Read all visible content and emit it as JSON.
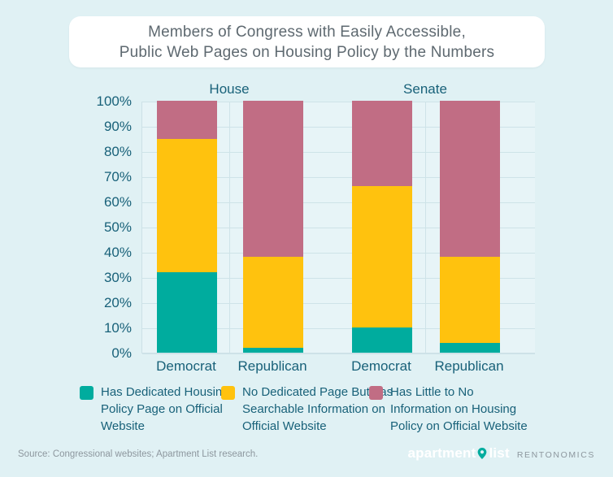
{
  "header": {
    "title_line1": "Members of Congress with Easily Accessible,",
    "title_line2": "Public Web Pages on Housing Policy by the Numbers"
  },
  "chart_data": {
    "type": "bar",
    "stacked": true,
    "units": "percent",
    "group_labels": [
      "House",
      "Senate"
    ],
    "categories": [
      "Democrat",
      "Republican",
      "Democrat",
      "Republican"
    ],
    "category_groups": [
      "House",
      "House",
      "Senate",
      "Senate"
    ],
    "series": [
      {
        "name": "Has Dedicated Housing Policy Page on Official Website",
        "color": "#00AC9E",
        "values": [
          32,
          2,
          10,
          4
        ]
      },
      {
        "name": "No Dedicated Page But has Searchable Information on Official Website",
        "color": "#FFC20E",
        "values": [
          53,
          36,
          56,
          34
        ]
      },
      {
        "name": "Has Little to No Information on Housing Policy on Official Website",
        "color": "#C16D84",
        "values": [
          15,
          62,
          34,
          62
        ]
      }
    ],
    "y_ticks": [
      "100%",
      "90%",
      "80%",
      "70%",
      "60%",
      "50%",
      "40%",
      "30%",
      "20%",
      "10%",
      "0%"
    ],
    "ylim": [
      0,
      100
    ],
    "grid": true,
    "legend_position": "bottom"
  },
  "legend": {
    "items": [
      {
        "label": "Has Dedicated Housing Policy Page on Official Website",
        "color": "#00AC9E"
      },
      {
        "label": "No Dedicated Page But has Searchable Information on Official Website",
        "color": "#FFC20E"
      },
      {
        "label": "Has Little to No Information on Housing Policy on Official Website",
        "color": "#C16D84"
      }
    ]
  },
  "footer": {
    "source": "Source: Congressional websites; Apartment List research.",
    "brand": {
      "word1": "apartment",
      "word2": "list",
      "sub": "RENTONOMICS"
    }
  },
  "colors": {
    "background": "#E0F1F4",
    "card": "#FFFFFF",
    "accent_teal": "#00AC9E",
    "accent_yellow": "#FFC20E",
    "accent_mauve": "#C16D84",
    "text_dark": "#186179",
    "text_gray": "#8D979E"
  }
}
